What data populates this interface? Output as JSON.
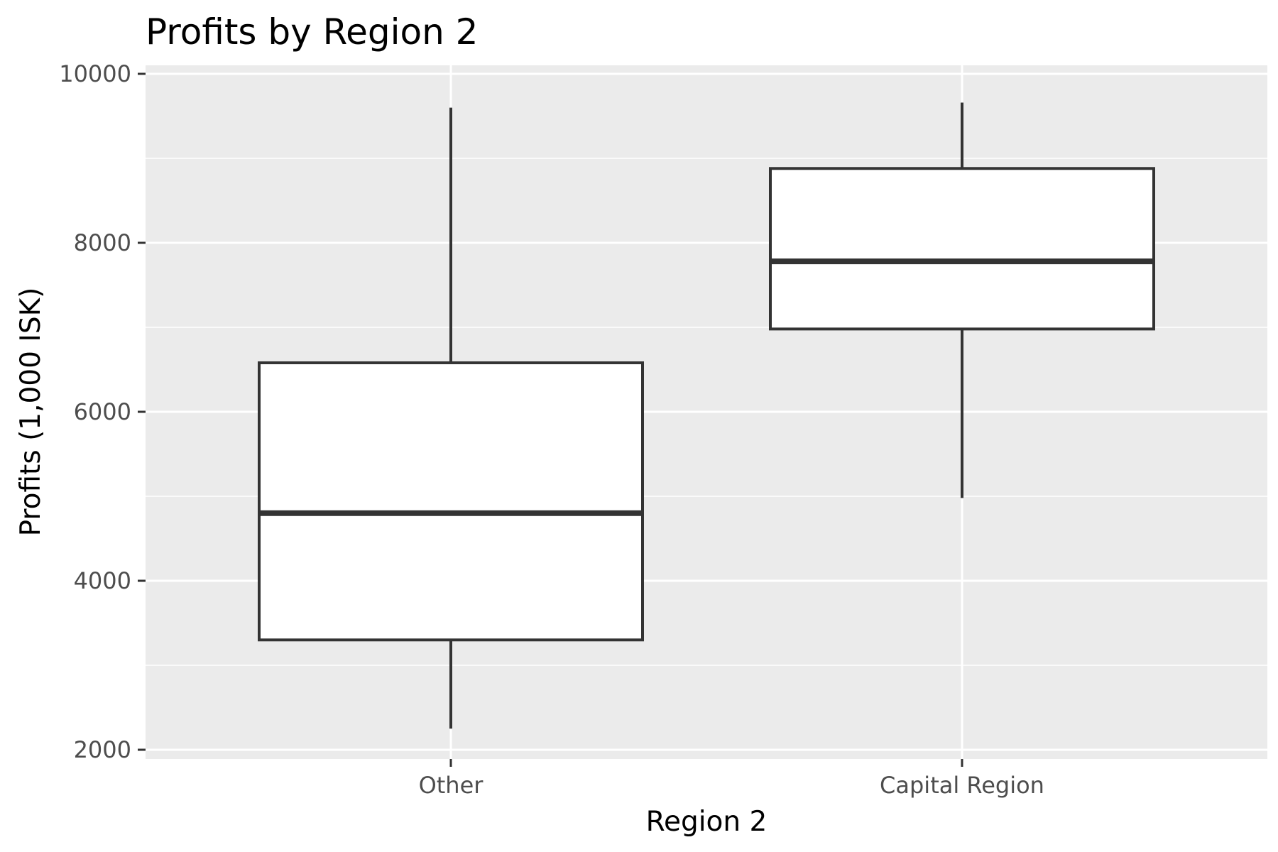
{
  "chart_data": {
    "type": "box",
    "title": "Profits by Region 2",
    "xlabel": "Region 2",
    "ylabel": "Profits (1,000 ISK)",
    "categories": [
      "Other",
      "Capital Region"
    ],
    "boxes": [
      {
        "category": "Other",
        "whisker_low": 2250,
        "q1": 3300,
        "median": 4800,
        "q3": 6580,
        "whisker_high": 9600
      },
      {
        "category": "Capital Region",
        "whisker_low": 4980,
        "q1": 6980,
        "median": 7780,
        "q3": 8880,
        "whisker_high": 9660
      }
    ],
    "ylim": [
      1870,
      10000
    ],
    "y_ticks": [
      2000,
      4000,
      6000,
      8000,
      10000
    ],
    "grid": true,
    "legend": "none",
    "colors": {
      "panel_background": "#ebebeb",
      "grid": "#ffffff",
      "box_fill": "#ffffff",
      "box_line": "#333333"
    }
  }
}
